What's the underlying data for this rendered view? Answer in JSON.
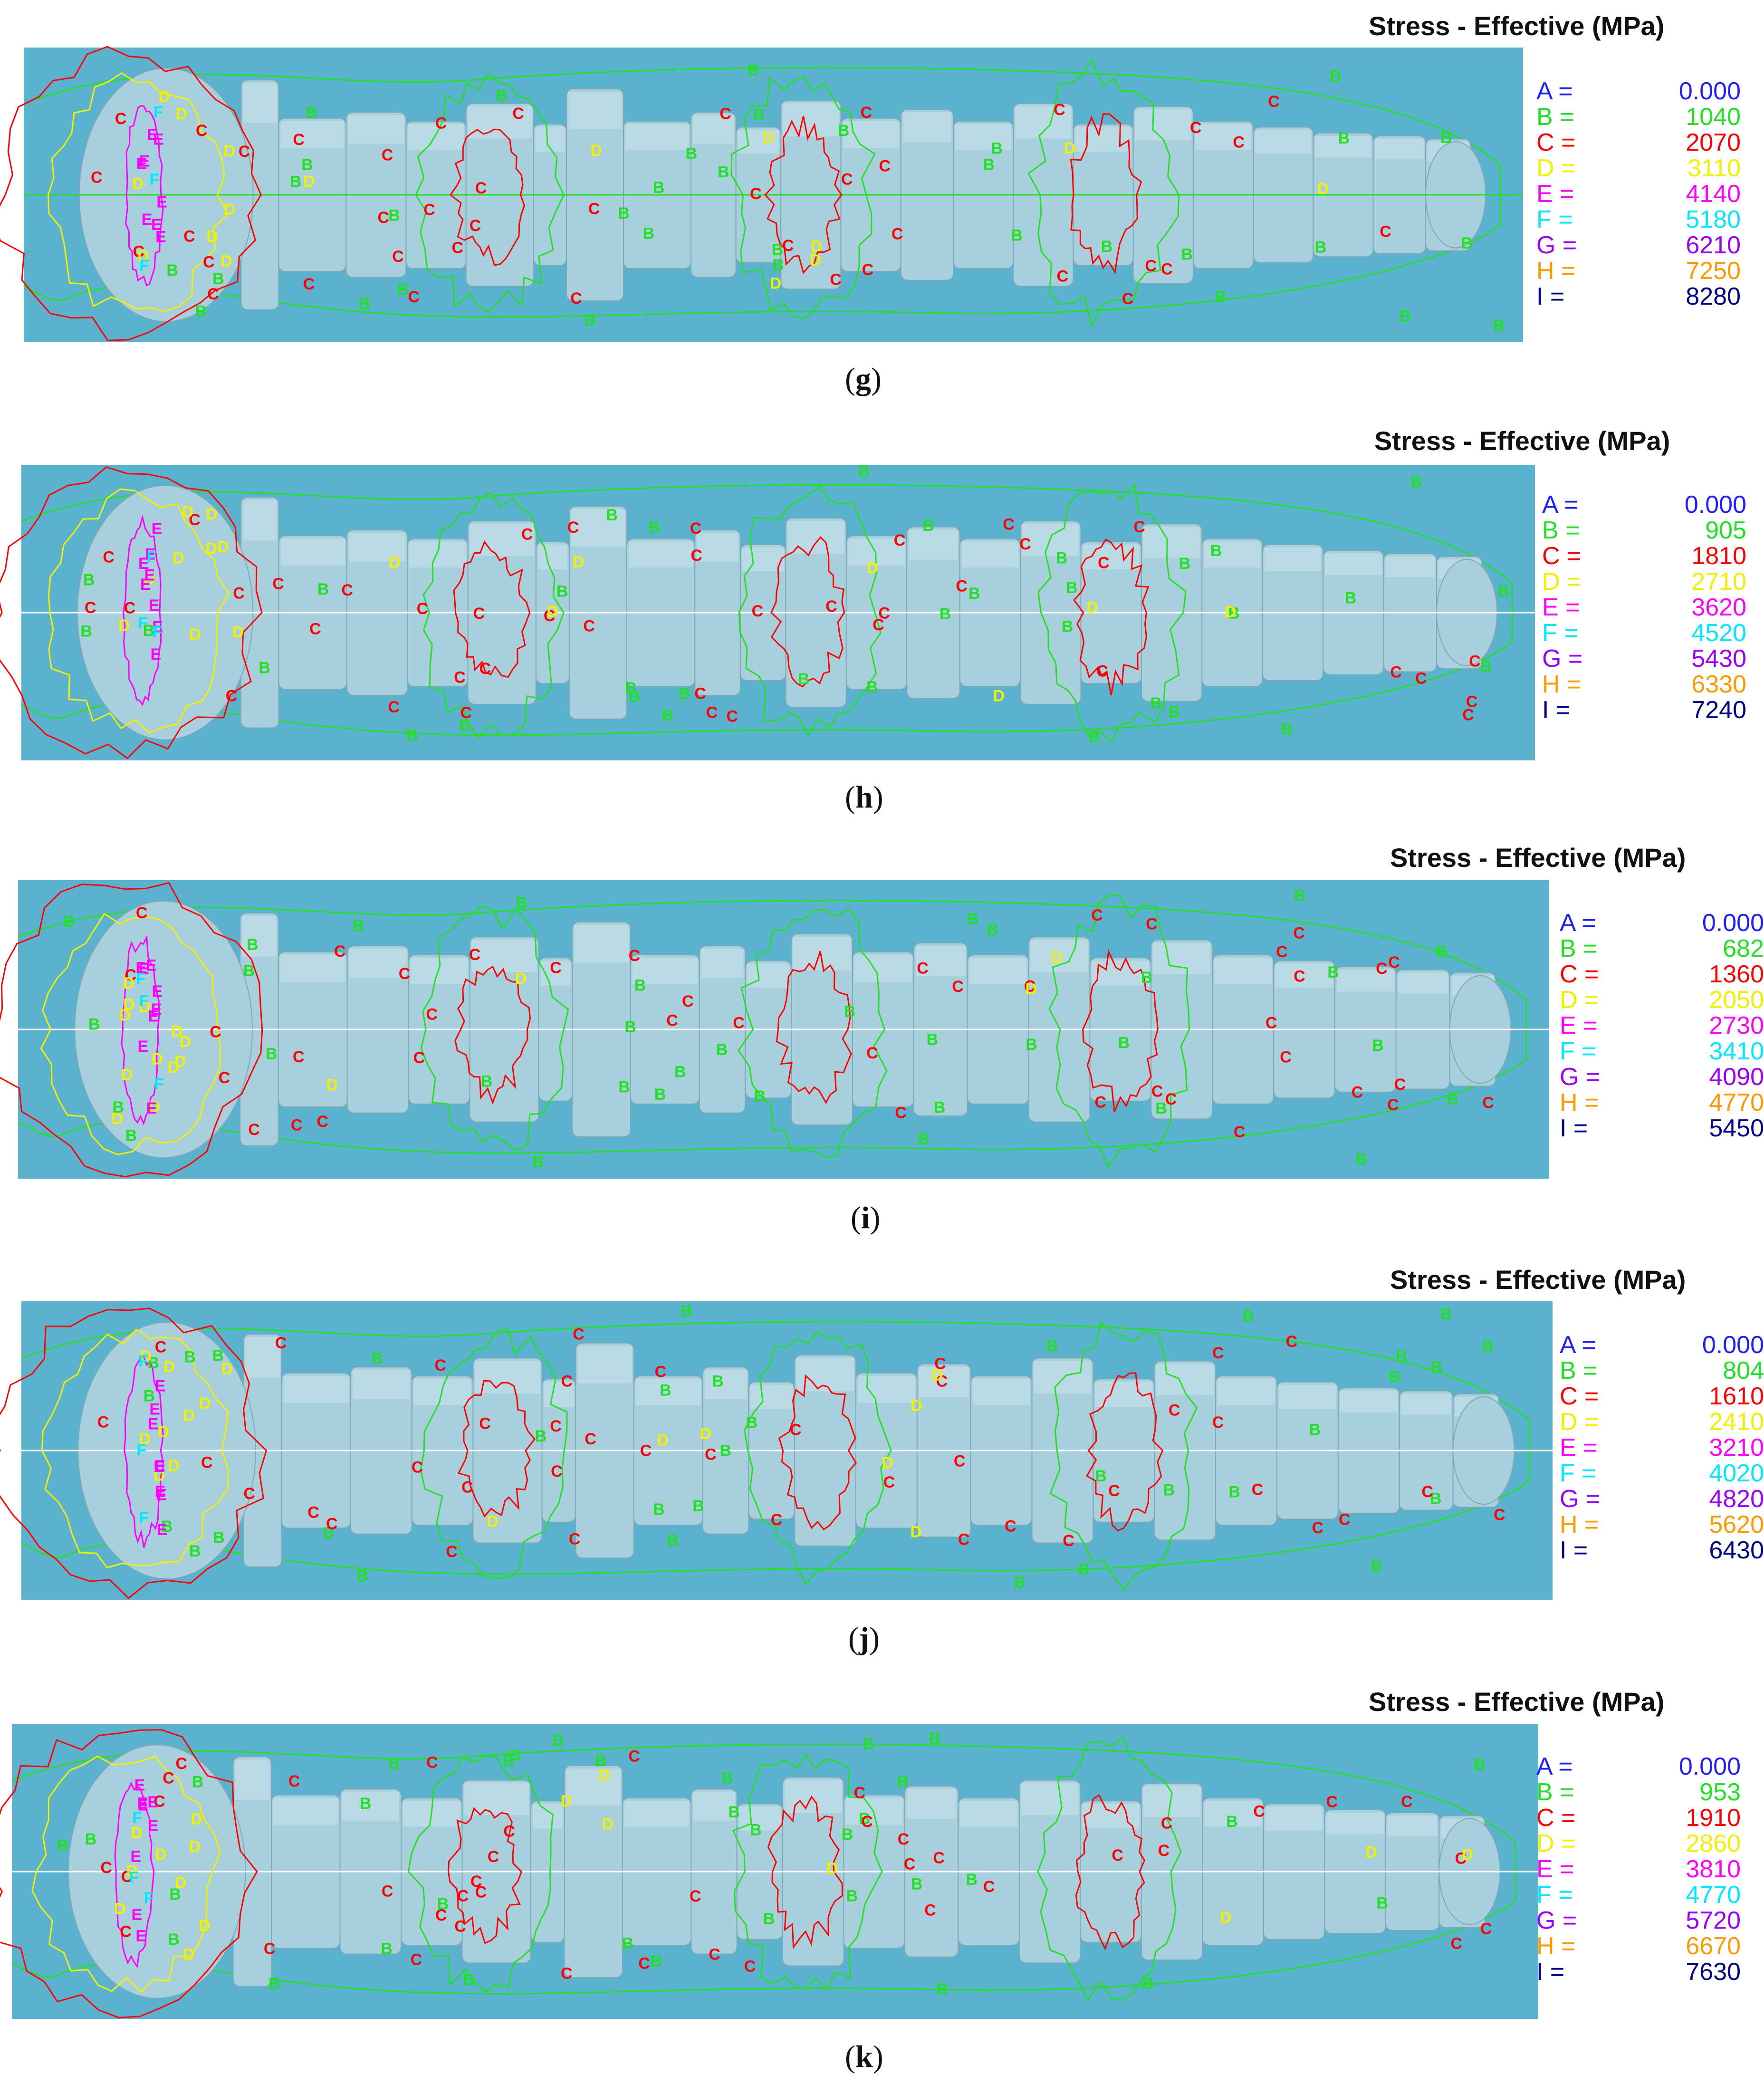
{
  "legend_title": "Stress - Effective (MPa)",
  "legend_colors": {
    "A": "#1f1fff",
    "B": "#22e022",
    "C": "#ff0000",
    "D": "#f0f000",
    "E": "#ff00ff",
    "F": "#00e8ff",
    "G": "#9b00ff",
    "H": "#ff9900",
    "I": "#000088"
  },
  "viewport_color": "#5bb2cf",
  "shaft_color": "#a8cfdc",
  "panels": [
    {
      "id": "g",
      "caption_open": "(",
      "caption_letter": "g",
      "caption_close": ")",
      "legend": [
        {
          "key": "A =",
          "value": "0.000"
        },
        {
          "key": "B =",
          "value": "1040"
        },
        {
          "key": "C =",
          "value": "2070"
        },
        {
          "key": "D =",
          "value": "3110"
        },
        {
          "key": "E =",
          "value": "4140"
        },
        {
          "key": "F =",
          "value": "5180"
        },
        {
          "key": "G =",
          "value": "6210"
        },
        {
          "key": "H =",
          "value": "7250"
        },
        {
          "key": "I =",
          "value": "8280"
        }
      ]
    },
    {
      "id": "h",
      "caption_open": "(",
      "caption_letter": "h",
      "caption_close": ")",
      "legend": [
        {
          "key": "A =",
          "value": "0.000"
        },
        {
          "key": "B =",
          "value": "905"
        },
        {
          "key": "C =",
          "value": "1810"
        },
        {
          "key": "D =",
          "value": "2710"
        },
        {
          "key": "E =",
          "value": "3620"
        },
        {
          "key": "F =",
          "value": "4520"
        },
        {
          "key": "G =",
          "value": "5430"
        },
        {
          "key": "H =",
          "value": "6330"
        },
        {
          "key": "I =",
          "value": "7240"
        }
      ]
    },
    {
      "id": "i",
      "caption_open": "(",
      "caption_letter": "i",
      "caption_close": ")",
      "legend": [
        {
          "key": "A =",
          "value": "0.000"
        },
        {
          "key": "B =",
          "value": "682"
        },
        {
          "key": "C =",
          "value": "1360"
        },
        {
          "key": "D =",
          "value": "2050"
        },
        {
          "key": "E =",
          "value": "2730"
        },
        {
          "key": "F =",
          "value": "3410"
        },
        {
          "key": "G =",
          "value": "4090"
        },
        {
          "key": "H =",
          "value": "4770"
        },
        {
          "key": "I =",
          "value": "5450"
        }
      ]
    },
    {
      "id": "j",
      "caption_open": "(",
      "caption_letter": "j",
      "caption_close": ")",
      "legend": [
        {
          "key": "A =",
          "value": "0.000"
        },
        {
          "key": "B =",
          "value": "804"
        },
        {
          "key": "C =",
          "value": "1610"
        },
        {
          "key": "D =",
          "value": "2410"
        },
        {
          "key": "E =",
          "value": "3210"
        },
        {
          "key": "F =",
          "value": "4020"
        },
        {
          "key": "G =",
          "value": "4820"
        },
        {
          "key": "H =",
          "value": "5620"
        },
        {
          "key": "I =",
          "value": "6430"
        }
      ]
    },
    {
      "id": "k",
      "caption_open": "(",
      "caption_letter": "k",
      "caption_close": ")",
      "legend": [
        {
          "key": "A =",
          "value": "0.000"
        },
        {
          "key": "B =",
          "value": "953"
        },
        {
          "key": "C =",
          "value": "1910"
        },
        {
          "key": "D =",
          "value": "2860"
        },
        {
          "key": "E =",
          "value": "3810"
        },
        {
          "key": "F =",
          "value": "4770"
        },
        {
          "key": "G =",
          "value": "5720"
        },
        {
          "key": "H =",
          "value": "6670"
        },
        {
          "key": "I =",
          "value": "7630"
        }
      ]
    }
  ]
}
